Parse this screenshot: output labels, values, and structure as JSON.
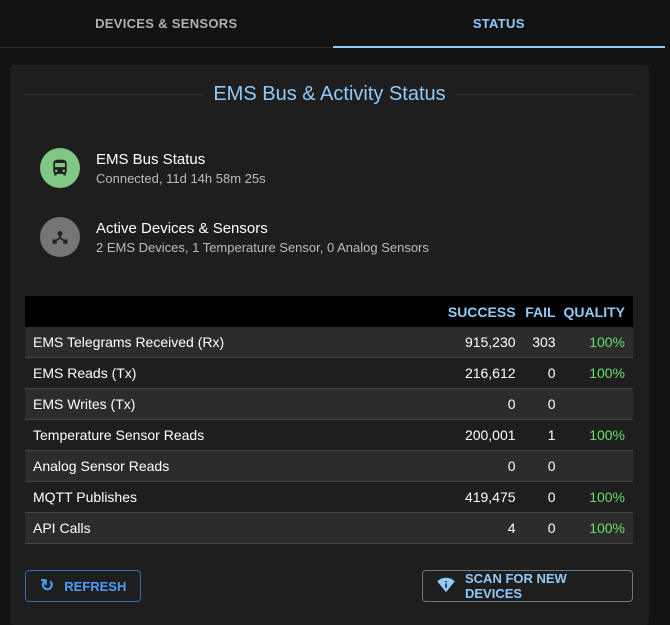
{
  "tabs": [
    {
      "label": "DEVICES & SENSORS"
    },
    {
      "label": "STATUS",
      "active": true
    }
  ],
  "title": "EMS Bus & Activity Status",
  "bus_status": {
    "primary": "EMS Bus Status",
    "secondary": "Connected, 11d 14h 58m 25s",
    "icon": "bus-icon",
    "color": "#81c784"
  },
  "active": {
    "primary": "Active Devices & Sensors",
    "secondary": "2 EMS Devices, 1 Temperature Sensor, 0 Analog Sensors",
    "icon": "hub-icon",
    "color": "#757575"
  },
  "table": {
    "headers": [
      "",
      "SUCCESS",
      "FAIL",
      "QUALITY"
    ],
    "rows": [
      [
        "EMS Telegrams Received (Rx)",
        "915,230",
        "303",
        "100%"
      ],
      [
        "EMS Reads (Tx)",
        "216,612",
        "0",
        "100%"
      ],
      [
        "EMS Writes (Tx)",
        "0",
        "0",
        ""
      ],
      [
        "Temperature Sensor Reads",
        "200,001",
        "1",
        "100%"
      ],
      [
        "Analog Sensor Reads",
        "0",
        "0",
        ""
      ],
      [
        "MQTT Publishes",
        "419,475",
        "0",
        "100%"
      ],
      [
        "API Calls",
        "4",
        "0",
        "100%"
      ]
    ]
  },
  "buttons": {
    "refresh": "REFRESH",
    "scan": "SCAN FOR NEW DEVICES"
  }
}
